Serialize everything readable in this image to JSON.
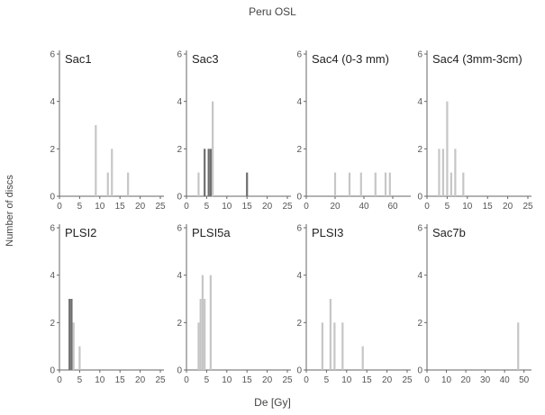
{
  "title": "Peru OSL",
  "ylabel": "Number of discs",
  "xlabel": "De [Gy]",
  "colors": {
    "bar_light": "#c6c6c6",
    "bar_dark": "#6e6e6e",
    "axis": "#666666"
  },
  "chart_data": [
    {
      "type": "bar",
      "title": "Sac1",
      "xlim": [
        0,
        25
      ],
      "xticks": [
        "0",
        "5",
        "10",
        "15",
        "20",
        "25"
      ],
      "ylim": [
        0,
        6
      ],
      "yticks": [
        "0",
        "2",
        "4",
        "6"
      ],
      "bars": [
        {
          "x": 9,
          "y": 3,
          "shade": "light"
        },
        {
          "x": 12,
          "y": 1,
          "shade": "light"
        },
        {
          "x": 13,
          "y": 2,
          "shade": "light"
        },
        {
          "x": 17,
          "y": 1,
          "shade": "light"
        }
      ]
    },
    {
      "type": "bar",
      "title": "Sac3",
      "xlim": [
        0,
        25
      ],
      "xticks": [
        "0",
        "5",
        "10",
        "15",
        "20",
        "25"
      ],
      "ylim": [
        0,
        6
      ],
      "yticks": [
        "0",
        "2",
        "4",
        "6"
      ],
      "bars": [
        {
          "x": 3,
          "y": 1,
          "shade": "light"
        },
        {
          "x": 4.5,
          "y": 2,
          "shade": "dark"
        },
        {
          "x": 5.5,
          "y": 2,
          "shade": "dark"
        },
        {
          "x": 6,
          "y": 2,
          "shade": "dark"
        },
        {
          "x": 6.5,
          "y": 4,
          "shade": "light"
        },
        {
          "x": 15,
          "y": 1,
          "shade": "dark"
        }
      ]
    },
    {
      "type": "bar",
      "title": "Sac4 (0-3 mm)",
      "xlim": [
        0,
        70
      ],
      "xticks": [
        "0",
        "20",
        "40",
        "60"
      ],
      "ylim": [
        0,
        6
      ],
      "yticks": [
        "0",
        "2",
        "4",
        "6"
      ],
      "bars": [
        {
          "x": 20,
          "y": 1,
          "shade": "light"
        },
        {
          "x": 30,
          "y": 1,
          "shade": "light"
        },
        {
          "x": 38,
          "y": 1,
          "shade": "light"
        },
        {
          "x": 48,
          "y": 1,
          "shade": "light"
        },
        {
          "x": 55,
          "y": 1,
          "shade": "light"
        },
        {
          "x": 58,
          "y": 1,
          "shade": "light"
        }
      ]
    },
    {
      "type": "bar",
      "title": "Sac4 (3mm-3cm)",
      "xlim": [
        0,
        25
      ],
      "xticks": [
        "0",
        "5",
        "10",
        "15",
        "20",
        "25"
      ],
      "ylim": [
        0,
        6
      ],
      "yticks": [
        "0",
        "2",
        "4",
        "6"
      ],
      "bars": [
        {
          "x": 3,
          "y": 2,
          "shade": "light"
        },
        {
          "x": 4,
          "y": 2,
          "shade": "light"
        },
        {
          "x": 5,
          "y": 4,
          "shade": "light"
        },
        {
          "x": 6,
          "y": 1,
          "shade": "light"
        },
        {
          "x": 7,
          "y": 2,
          "shade": "light"
        },
        {
          "x": 9,
          "y": 1,
          "shade": "light"
        }
      ]
    },
    {
      "type": "bar",
      "title": "PLSI2",
      "xlim": [
        0,
        25
      ],
      "xticks": [
        "0",
        "5",
        "10",
        "15",
        "20",
        "25"
      ],
      "ylim": [
        0,
        6
      ],
      "yticks": [
        "0",
        "2",
        "4",
        "6"
      ],
      "bars": [
        {
          "x": 2.5,
          "y": 3,
          "shade": "dark"
        },
        {
          "x": 3,
          "y": 3,
          "shade": "dark"
        },
        {
          "x": 3.5,
          "y": 2,
          "shade": "light"
        },
        {
          "x": 5,
          "y": 1,
          "shade": "light"
        }
      ]
    },
    {
      "type": "bar",
      "title": "PLSI5a",
      "xlim": [
        0,
        25
      ],
      "xticks": [
        "0",
        "5",
        "10",
        "15",
        "20",
        "25"
      ],
      "ylim": [
        0,
        6
      ],
      "yticks": [
        "0",
        "2",
        "4",
        "6"
      ],
      "bars": [
        {
          "x": 3,
          "y": 2,
          "shade": "light"
        },
        {
          "x": 3.5,
          "y": 3,
          "shade": "light"
        },
        {
          "x": 4,
          "y": 4,
          "shade": "light"
        },
        {
          "x": 4.5,
          "y": 3,
          "shade": "light"
        },
        {
          "x": 6,
          "y": 4,
          "shade": "light"
        }
      ]
    },
    {
      "type": "bar",
      "title": "PLSI3",
      "xlim": [
        0,
        25
      ],
      "xticks": [
        "0",
        "5",
        "10",
        "15",
        "20",
        "25"
      ],
      "ylim": [
        0,
        6
      ],
      "yticks": [
        "0",
        "2",
        "4",
        "6"
      ],
      "bars": [
        {
          "x": 4,
          "y": 2,
          "shade": "light"
        },
        {
          "x": 6,
          "y": 3,
          "shade": "light"
        },
        {
          "x": 7,
          "y": 2,
          "shade": "light"
        },
        {
          "x": 9,
          "y": 2,
          "shade": "light"
        },
        {
          "x": 14,
          "y": 1,
          "shade": "light"
        }
      ]
    },
    {
      "type": "bar",
      "title": "Sac7b",
      "xlim": [
        0,
        52
      ],
      "xticks": [
        "0",
        "10",
        "20",
        "30",
        "40",
        "50"
      ],
      "ylim": [
        0,
        6
      ],
      "yticks": [
        "0",
        "2",
        "4",
        "6"
      ],
      "bars": [
        {
          "x": 47,
          "y": 2,
          "shade": "light"
        }
      ]
    }
  ]
}
